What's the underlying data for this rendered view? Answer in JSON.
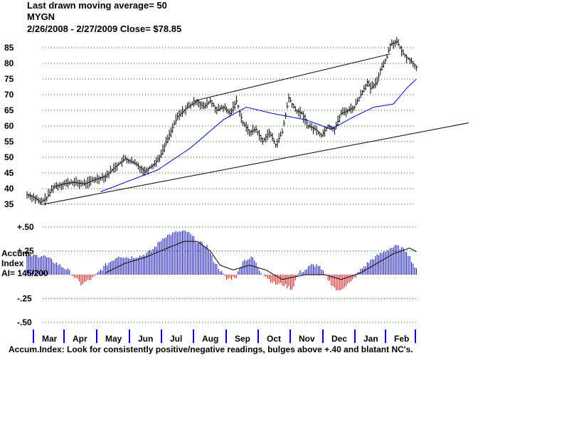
{
  "header": {
    "line1": "Last drawn moving average= 50",
    "ticker": "MYGN",
    "line3": "2/26/2008 - 2/27/2009   Close= $78.85"
  },
  "accum": {
    "label1": "Accum",
    "label2": "Index",
    "ai_text": "AI= 145/200"
  },
  "footer": {
    "note": "Accum.Index: Look for consistently positive/negative readings, bulges above +.40 and blatant NC's."
  },
  "colors": {
    "grid": "#008000",
    "price_bars": "#000000",
    "moving_average": "#0000cc",
    "accum_positive": "#0000aa",
    "accum_negative": "#cc0000",
    "month_ticks": "#0000cc"
  },
  "chart_data": [
    {
      "type": "line",
      "subtype": "ohlc-bars",
      "title": "MYGN",
      "ylim": [
        35,
        85
      ],
      "yticks": [
        35,
        40,
        45,
        50,
        55,
        60,
        65,
        70,
        75,
        80,
        85
      ],
      "ytick_labels": [
        "35",
        "40",
        "45",
        "50",
        "55",
        "60",
        "65",
        "70",
        "75",
        "80",
        "85"
      ],
      "grid": true,
      "x_months": [
        "Mar",
        "Apr",
        "May",
        "Jun",
        "Jul",
        "Aug",
        "Sep",
        "Oct",
        "Nov",
        "Dec",
        "Jan",
        "Feb"
      ],
      "price_anchors": [
        [
          0,
          38
        ],
        [
          3,
          37.5
        ],
        [
          6,
          36.5
        ],
        [
          8,
          35.5
        ],
        [
          12,
          37
        ],
        [
          16,
          40.5
        ],
        [
          22,
          41.5
        ],
        [
          28,
          42
        ],
        [
          35,
          41.5
        ],
        [
          42,
          43
        ],
        [
          48,
          44
        ],
        [
          54,
          47
        ],
        [
          60,
          49.5
        ],
        [
          66,
          48
        ],
        [
          72,
          45.5
        ],
        [
          78,
          48
        ],
        [
          82,
          51
        ],
        [
          86,
          56
        ],
        [
          92,
          63
        ],
        [
          98,
          66
        ],
        [
          104,
          68
        ],
        [
          108,
          66
        ],
        [
          112,
          68
        ],
        [
          116,
          65
        ],
        [
          120,
          66
        ],
        [
          124,
          64
        ],
        [
          128,
          68
        ],
        [
          132,
          61
        ],
        [
          136,
          58
        ],
        [
          140,
          59
        ],
        [
          144,
          55
        ],
        [
          148,
          58
        ],
        [
          152,
          54
        ],
        [
          156,
          58
        ],
        [
          160,
          69
        ],
        [
          164,
          65
        ],
        [
          168,
          64
        ],
        [
          172,
          60
        ],
        [
          176,
          59
        ],
        [
          180,
          57
        ],
        [
          184,
          60
        ],
        [
          188,
          59
        ],
        [
          192,
          64
        ],
        [
          196,
          65
        ],
        [
          200,
          66
        ],
        [
          204,
          70
        ],
        [
          208,
          74
        ],
        [
          210,
          72
        ],
        [
          214,
          74
        ],
        [
          216,
          78
        ],
        [
          220,
          82
        ],
        [
          222,
          86
        ],
        [
          226,
          87
        ],
        [
          230,
          83
        ],
        [
          234,
          81
        ],
        [
          238,
          78.85
        ]
      ],
      "moving_average_anchors": [
        [
          45,
          39
        ],
        [
          60,
          42
        ],
        [
          80,
          46
        ],
        [
          100,
          53
        ],
        [
          120,
          62
        ],
        [
          134,
          66
        ],
        [
          150,
          64
        ],
        [
          170,
          62
        ],
        [
          186,
          59
        ],
        [
          200,
          63
        ],
        [
          212,
          66
        ],
        [
          224,
          67
        ],
        [
          232,
          72
        ],
        [
          238,
          75
        ]
      ],
      "trendlines": [
        {
          "from": [
            10,
            35
          ],
          "to": [
            270,
            61
          ]
        },
        {
          "from": [
            102,
            68
          ],
          "to": [
            222,
            83
          ]
        }
      ]
    },
    {
      "type": "area",
      "title": "Accum Index",
      "ylim": [
        -0.5,
        0.5
      ],
      "yticks": [
        0.5,
        0.25,
        0,
        -0.25,
        -0.5
      ],
      "ytick_labels": [
        "+.50",
        "+.25",
        "",
        "-.25",
        "-.50"
      ],
      "grid": true,
      "ai_anchors": [
        [
          0,
          0.2
        ],
        [
          10,
          0.2
        ],
        [
          20,
          0.1
        ],
        [
          25,
          0.05
        ],
        [
          33,
          -0.1
        ],
        [
          40,
          -0.04
        ],
        [
          48,
          0.1
        ],
        [
          56,
          0.2
        ],
        [
          62,
          0.18
        ],
        [
          70,
          0.2
        ],
        [
          76,
          0.25
        ],
        [
          84,
          0.4
        ],
        [
          92,
          0.45
        ],
        [
          98,
          0.45
        ],
        [
          104,
          0.35
        ],
        [
          110,
          0.3
        ],
        [
          114,
          0.15
        ],
        [
          118,
          0.05
        ],
        [
          122,
          -0.05
        ],
        [
          128,
          -0.02
        ],
        [
          132,
          0.15
        ],
        [
          138,
          0.18
        ],
        [
          142,
          0.05
        ],
        [
          148,
          -0.05
        ],
        [
          152,
          -0.1
        ],
        [
          156,
          -0.1
        ],
        [
          162,
          -0.15
        ],
        [
          166,
          0.02
        ],
        [
          170,
          0.05
        ],
        [
          174,
          0.1
        ],
        [
          178,
          0.1
        ],
        [
          184,
          -0.05
        ],
        [
          190,
          -0.18
        ],
        [
          194,
          -0.12
        ],
        [
          198,
          -0.08
        ],
        [
          204,
          0.05
        ],
        [
          210,
          0.15
        ],
        [
          216,
          0.22
        ],
        [
          222,
          0.28
        ],
        [
          226,
          0.3
        ],
        [
          232,
          0.25
        ],
        [
          238,
          0.05
        ]
      ],
      "ai_ma_anchors": [
        [
          48,
          0.02
        ],
        [
          60,
          0.12
        ],
        [
          72,
          0.18
        ],
        [
          86,
          0.28
        ],
        [
          96,
          0.35
        ],
        [
          104,
          0.35
        ],
        [
          112,
          0.25
        ],
        [
          118,
          0.1
        ],
        [
          126,
          0.05
        ],
        [
          136,
          0.1
        ],
        [
          146,
          0.05
        ],
        [
          156,
          -0.05
        ],
        [
          170,
          0.0
        ],
        [
          182,
          0.0
        ],
        [
          192,
          -0.05
        ],
        [
          204,
          0.02
        ],
        [
          214,
          0.12
        ],
        [
          224,
          0.22
        ],
        [
          234,
          0.28
        ],
        [
          238,
          0.24
        ]
      ]
    }
  ]
}
